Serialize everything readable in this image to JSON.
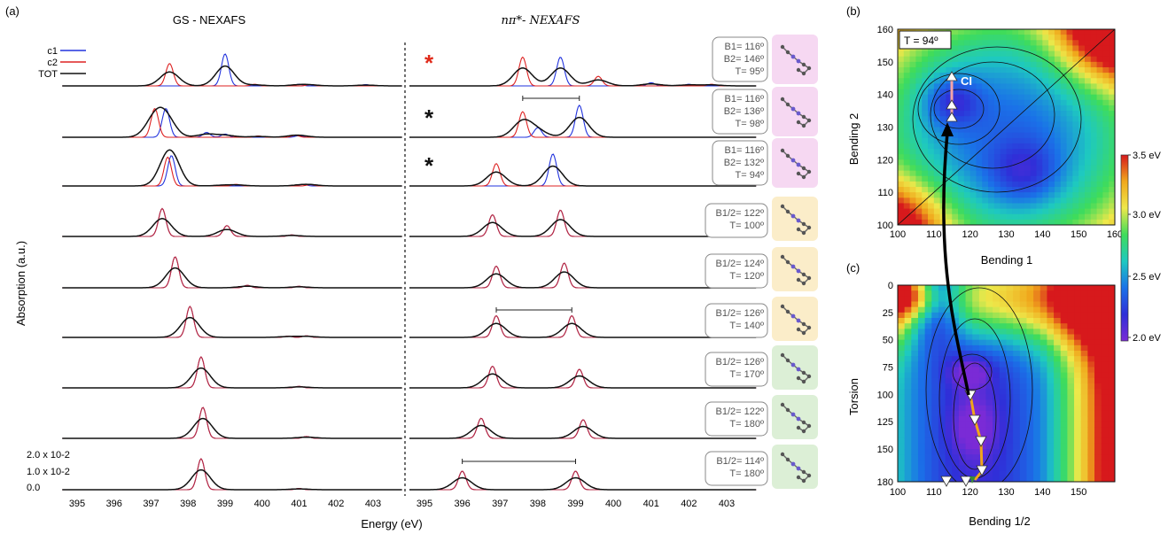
{
  "panels": {
    "a": "(a)",
    "b": "(b)",
    "c": "(c)"
  },
  "panel_a": {
    "title_left": "GS - NEXAFS",
    "title_right": "nπ*- NEXAFS",
    "ylabel": "Absorption (a.u.)",
    "xlabel": "Energy (eV)",
    "x_ticks_left": [
      "395",
      "396",
      "397",
      "398",
      "399",
      "400",
      "401",
      "402",
      "403"
    ],
    "x_ticks_right": [
      "395",
      "396",
      "397",
      "398",
      "399",
      "400",
      "401",
      "402",
      "403"
    ],
    "scale_labels": [
      "2.0 x 10-2",
      "1.0 x 10-2",
      "0.0"
    ],
    "legend": [
      {
        "name": "c1",
        "color": "#2233dd"
      },
      {
        "name": "c2",
        "color": "#dd2222"
      },
      {
        "name": "TOT",
        "color": "#111111"
      }
    ],
    "geometries": [
      {
        "lines": [
          "B1= 116º",
          "B2= 146º",
          "T= 95º"
        ],
        "tint": "#f6d8f2",
        "star": "*",
        "star_color": "#e02a1a"
      },
      {
        "lines": [
          "B1= 116º",
          "B2= 136º",
          "T= 98º"
        ],
        "tint": "#f6d8f2",
        "star": "*",
        "star_color": "#111111"
      },
      {
        "lines": [
          "B1= 116º",
          "B2= 132º",
          "T= 94º"
        ],
        "tint": "#f6d8f2",
        "star": "*",
        "star_color": "#111111"
      },
      {
        "lines": [
          "B1/2= 122º",
          "T= 100º"
        ],
        "tint": "#fbedc9",
        "star": "",
        "star_color": ""
      },
      {
        "lines": [
          "B1/2= 124º",
          "T= 120º"
        ],
        "tint": "#fbedc9",
        "star": "",
        "star_color": ""
      },
      {
        "lines": [
          "B1/2= 126º",
          "T= 140º"
        ],
        "tint": "#fbedc9",
        "star": "",
        "star_color": ""
      },
      {
        "lines": [
          "B1/2= 126º",
          "T= 170º"
        ],
        "tint": "#dcefd6",
        "star": "",
        "star_color": ""
      },
      {
        "lines": [
          "B1/2= 122º",
          "T= 180º"
        ],
        "tint": "#dcefd6",
        "star": "",
        "star_color": ""
      },
      {
        "lines": [
          "B1/2= 114º",
          "T= 180º"
        ],
        "tint": "#dcefd6",
        "star": "",
        "star_color": ""
      }
    ]
  },
  "panel_b": {
    "ylabel": "Bending 2",
    "xlabel": "Bending 1",
    "annotation": "T = 94º",
    "ci_label": "CI",
    "x_ticks": [
      "100",
      "110",
      "120",
      "130",
      "140",
      "150",
      "160"
    ],
    "y_ticks": [
      "160",
      "150",
      "140",
      "130",
      "120",
      "110",
      "100"
    ]
  },
  "panel_c": {
    "ylabel": "Torsion",
    "xlabel": "Bending 1/2",
    "x_ticks": [
      "100",
      "110",
      "120",
      "130",
      "140",
      "150"
    ],
    "y_ticks": [
      "0",
      "25",
      "50",
      "75",
      "100",
      "125",
      "150",
      "180"
    ]
  },
  "colorbar": {
    "labels": [
      "3.5 eV",
      "3.0 eV",
      "2.5 eV",
      "2.0 eV"
    ],
    "colors": [
      "#d7191c",
      "#f0a81c",
      "#eee84a",
      "#3fdc5a",
      "#1ec9c0",
      "#1a72e8",
      "#2f2fd8",
      "#7a2bd6"
    ]
  },
  "chart_data": [
    {
      "type": "line",
      "panel": "a-left",
      "xlabel": "Energy (eV)",
      "ylabel": "Absorption (a.u.)",
      "xlim": [
        394.6,
        403.8
      ],
      "note": "Each spectrum: list of peaks [energy eV, height, component]",
      "spectra": [
        {
          "c1": [
            [
              399.0,
              1.0
            ],
            [
              401.0,
              0.05
            ],
            [
              402.8,
              0.04
            ]
          ],
          "c2": [
            [
              397.5,
              0.7
            ],
            [
              399.8,
              0.05
            ],
            [
              401.3,
              0.04
            ]
          ]
        },
        {
          "c1": [
            [
              397.4,
              0.9
            ],
            [
              398.5,
              0.15
            ],
            [
              399.0,
              0.1
            ],
            [
              401.0,
              0.05
            ]
          ],
          "c2": [
            [
              397.1,
              0.9
            ],
            [
              399.9,
              0.04
            ],
            [
              400.9,
              0.06
            ]
          ]
        },
        {
          "c1": [
            [
              397.55,
              0.95
            ],
            [
              398.9,
              0.03
            ],
            [
              401.1,
              0.05
            ]
          ],
          "c2": [
            [
              397.45,
              0.9
            ],
            [
              399.3,
              0.05
            ],
            [
              401.3,
              0.04
            ]
          ]
        },
        {
          "c1": [
            [
              397.3,
              0.9
            ],
            [
              399.05,
              0.35
            ],
            [
              400.8,
              0.05
            ]
          ],
          "c2": [
            [
              397.3,
              0.9
            ],
            [
              399.05,
              0.35
            ],
            [
              400.8,
              0.05
            ]
          ]
        },
        {
          "c1": [
            [
              397.65,
              1.0
            ],
            [
              399.6,
              0.08
            ],
            [
              401.0,
              0.05
            ]
          ],
          "c2": [
            [
              397.65,
              1.0
            ],
            [
              399.6,
              0.08
            ],
            [
              401.0,
              0.05
            ]
          ]
        },
        {
          "c1": [
            [
              398.05,
              1.0
            ],
            [
              400.7,
              0.04
            ],
            [
              401.2,
              0.05
            ]
          ],
          "c2": [
            [
              398.05,
              1.0
            ],
            [
              400.7,
              0.04
            ],
            [
              401.2,
              0.05
            ]
          ]
        },
        {
          "c1": [
            [
              398.35,
              1.0
            ],
            [
              401.0,
              0.05
            ]
          ],
          "c2": [
            [
              398.35,
              1.0
            ],
            [
              401.0,
              0.05
            ]
          ]
        },
        {
          "c1": [
            [
              398.4,
              1.0
            ],
            [
              401.2,
              0.06
            ]
          ],
          "c2": [
            [
              398.4,
              1.0
            ],
            [
              401.2,
              0.06
            ]
          ]
        },
        {
          "c1": [
            [
              398.35,
              1.0
            ],
            [
              401.0,
              0.04
            ]
          ],
          "c2": [
            [
              398.35,
              1.0
            ],
            [
              401.0,
              0.04
            ]
          ]
        }
      ]
    },
    {
      "type": "line",
      "panel": "a-right",
      "xlabel": "Energy (eV)",
      "xlim": [
        394.6,
        403.8
      ],
      "spectra": [
        {
          "c1": [
            [
              398.6,
              0.9
            ],
            [
              401.0,
              0.1
            ],
            [
              402.0,
              0.05
            ]
          ],
          "c2": [
            [
              397.6,
              0.9
            ],
            [
              399.6,
              0.3
            ],
            [
              402.6,
              0.05
            ]
          ]
        },
        {
          "c1": [
            [
              398.0,
              0.3
            ],
            [
              399.1,
              1.0
            ]
          ],
          "c2": [
            [
              397.6,
              0.8
            ]
          ]
        },
        {
          "c1": [
            [
              398.4,
              1.0
            ]
          ],
          "c2": [
            [
              396.9,
              0.7
            ]
          ]
        },
        {
          "c1": [
            [
              396.8,
              0.7
            ],
            [
              398.6,
              0.85
            ]
          ],
          "c2": [
            [
              396.8,
              0.7
            ],
            [
              398.6,
              0.85
            ]
          ]
        },
        {
          "c1": [
            [
              396.9,
              0.7
            ],
            [
              398.7,
              0.8
            ]
          ],
          "c2": [
            [
              396.9,
              0.7
            ],
            [
              398.7,
              0.8
            ]
          ]
        },
        {
          "c1": [
            [
              396.9,
              0.7
            ],
            [
              398.9,
              0.7
            ]
          ],
          "c2": [
            [
              396.9,
              0.7
            ],
            [
              398.9,
              0.7
            ]
          ]
        },
        {
          "c1": [
            [
              396.8,
              0.7
            ],
            [
              399.1,
              0.6
            ]
          ],
          "c2": [
            [
              396.8,
              0.7
            ],
            [
              399.1,
              0.6
            ]
          ]
        },
        {
          "c1": [
            [
              396.5,
              0.65
            ],
            [
              399.2,
              0.6
            ]
          ],
          "c2": [
            [
              396.5,
              0.65
            ],
            [
              399.2,
              0.6
            ]
          ]
        },
        {
          "c1": [
            [
              396.0,
              0.6
            ],
            [
              399.0,
              0.6
            ]
          ],
          "c2": [
            [
              396.0,
              0.6
            ],
            [
              399.0,
              0.6
            ]
          ]
        }
      ]
    },
    {
      "type": "heatmap",
      "panel": "b",
      "xlabel": "Bending 1",
      "ylabel": "Bending 2",
      "xlim": [
        100,
        160
      ],
      "ylim": [
        100,
        160
      ],
      "colorbar_range_eV": [
        2.0,
        3.5
      ]
    },
    {
      "type": "heatmap",
      "panel": "c",
      "xlabel": "Bending 1/2",
      "ylabel": "Torsion",
      "xlim": [
        100,
        160
      ],
      "ylim": [
        180,
        0
      ],
      "colorbar_range_eV": [
        2.0,
        3.5
      ]
    }
  ]
}
